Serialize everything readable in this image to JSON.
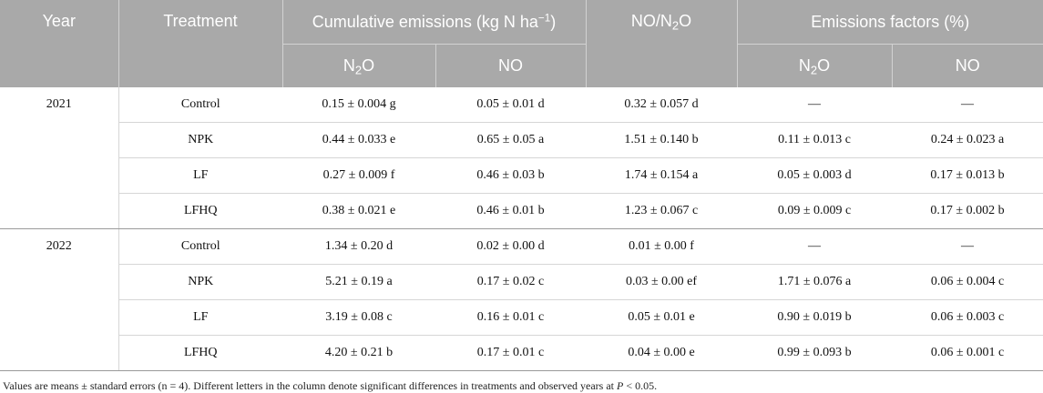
{
  "header": {
    "year": "Year",
    "treatment": "Treatment",
    "cumulative_prefix": "Cumulative emissions (kg N ha",
    "cumulative_sup": "−1",
    "cumulative_suffix": ")",
    "ratio_a": "NO/N",
    "ratio_sub": "2",
    "ratio_b": "O",
    "factors": "Emissions factors (%)",
    "n2o_a": "N",
    "n2o_sub": "2",
    "n2o_b": "O",
    "no": "NO"
  },
  "groups": [
    {
      "year": "2021",
      "rows": [
        {
          "treatment": "Control",
          "n2o": "0.15 ± 0.004 g",
          "no": "0.05 ± 0.01 d",
          "ratio": "0.32 ± 0.057 d",
          "ef_n2o": "—",
          "ef_no": "—"
        },
        {
          "treatment": "NPK",
          "n2o": "0.44 ± 0.033 e",
          "no": "0.65 ± 0.05 a",
          "ratio": "1.51 ± 0.140 b",
          "ef_n2o": "0.11 ± 0.013 c",
          "ef_no": "0.24 ± 0.023 a"
        },
        {
          "treatment": "LF",
          "n2o": "0.27 ± 0.009 f",
          "no": "0.46 ± 0.03 b",
          "ratio": "1.74 ± 0.154 a",
          "ef_n2o": "0.05 ± 0.003 d",
          "ef_no": "0.17 ± 0.013 b"
        },
        {
          "treatment": "LFHQ",
          "n2o": "0.38 ± 0.021 e",
          "no": "0.46 ± 0.01 b",
          "ratio": "1.23 ± 0.067 c",
          "ef_n2o": "0.09 ± 0.009 c",
          "ef_no": "0.17 ± 0.002 b"
        }
      ]
    },
    {
      "year": "2022",
      "rows": [
        {
          "treatment": "Control",
          "n2o": "1.34 ± 0.20 d",
          "no": "0.02 ± 0.00 d",
          "ratio": "0.01 ± 0.00 f",
          "ef_n2o": "—",
          "ef_no": "—"
        },
        {
          "treatment": "NPK",
          "n2o": "5.21 ± 0.19 a",
          "no": "0.17 ± 0.02 c",
          "ratio": "0.03 ± 0.00 ef",
          "ef_n2o": "1.71 ± 0.076 a",
          "ef_no": "0.06 ± 0.004 c"
        },
        {
          "treatment": "LF",
          "n2o": "3.19 ± 0.08 c",
          "no": "0.16 ± 0.01 c",
          "ratio": "0.05 ± 0.01 e",
          "ef_n2o": "0.90 ± 0.019 b",
          "ef_no": "0.06 ± 0.003 c"
        },
        {
          "treatment": "LFHQ",
          "n2o": "4.20 ± 0.21 b",
          "no": "0.17 ± 0.01 c",
          "ratio": "0.04 ± 0.00 e",
          "ef_n2o": "0.99 ± 0.093 b",
          "ef_no": "0.06 ± 0.001 c"
        }
      ]
    }
  ],
  "footnote": {
    "text": "Values are means ± standard errors (n = 4). Different letters in the column denote significant differences in treatments and observed years at ",
    "p_symbol": "P",
    "p_value": " < 0.05."
  }
}
